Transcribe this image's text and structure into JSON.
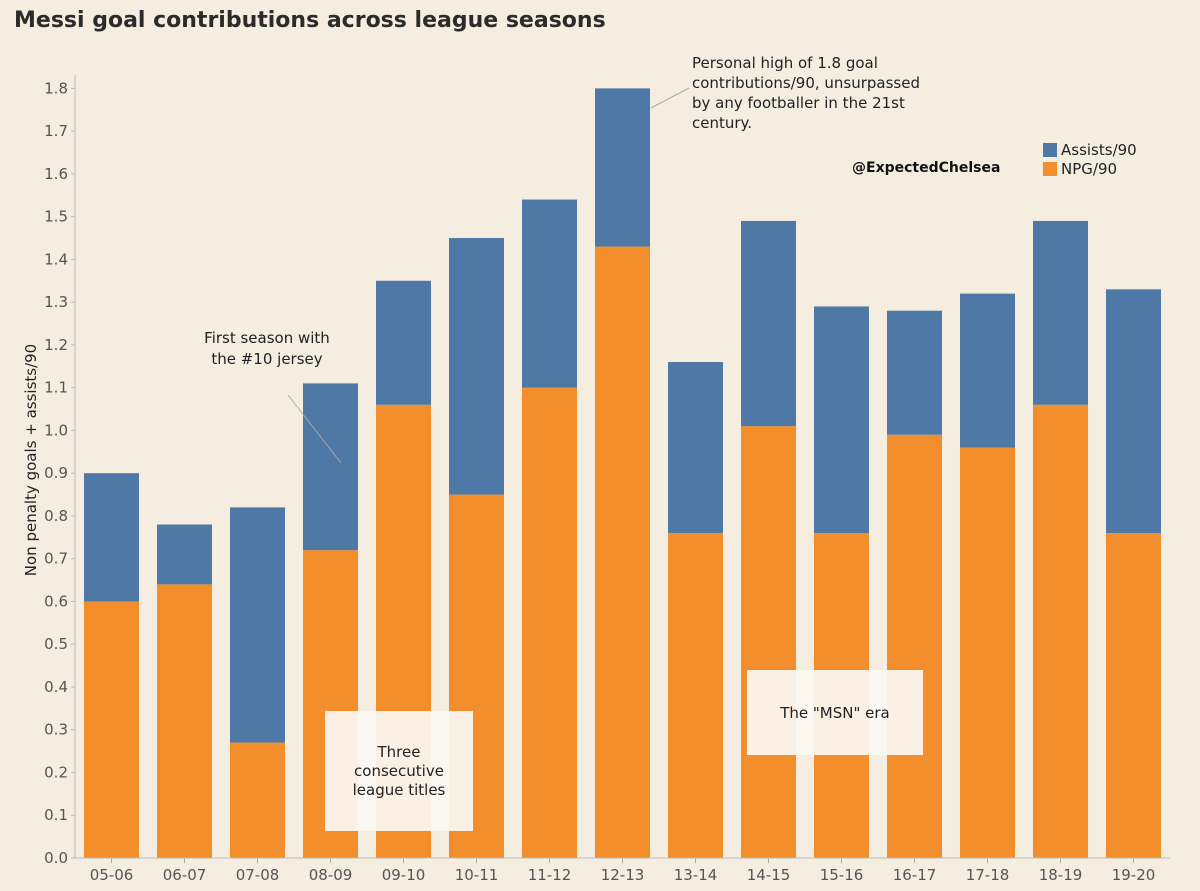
{
  "chart_data": {
    "type": "bar",
    "stacked": true,
    "title": "Messi goal contributions across league seasons",
    "ylabel": "Non penalty goals + assists/90",
    "xlabel": "",
    "ylim": [
      0,
      1.85
    ],
    "yticks": [
      "0.0",
      "0.1",
      "0.2",
      "0.3",
      "0.4",
      "0.5",
      "0.6",
      "0.7",
      "0.8",
      "0.9",
      "1.0",
      "1.1",
      "1.2",
      "1.3",
      "1.4",
      "1.5",
      "1.6",
      "1.7",
      "1.8"
    ],
    "categories": [
      "05-06",
      "06-07",
      "07-08",
      "08-09",
      "09-10",
      "10-11",
      "11-12",
      "12-13",
      "13-14",
      "14-15",
      "15-16",
      "16-17",
      "17-18",
      "18-19",
      "19-20"
    ],
    "series": [
      {
        "name": "NPG/90",
        "color": "#f28e2b",
        "values": [
          0.6,
          0.64,
          0.27,
          0.72,
          1.06,
          0.85,
          1.1,
          1.43,
          0.76,
          1.01,
          0.76,
          0.99,
          0.96,
          1.06,
          0.76
        ]
      },
      {
        "name": "Assists/90",
        "color": "#4e79a7",
        "values": [
          0.3,
          0.14,
          0.55,
          0.39,
          0.29,
          0.6,
          0.44,
          0.37,
          0.4,
          0.48,
          0.53,
          0.29,
          0.36,
          0.43,
          0.57
        ]
      }
    ],
    "legend": {
      "placement": "top-right",
      "order": [
        "Assists/90",
        "NPG/90"
      ]
    },
    "grid": false,
    "annotations": {
      "jersey": [
        "First season with",
        "the #10 jersey"
      ],
      "high": [
        "Personal high of 1.8 goal",
        "contributions/90, unsurpassed",
        "by any footballer in the 21st",
        "century."
      ],
      "titles_box": [
        "Three",
        "consecutive",
        "league titles"
      ],
      "msn_box": [
        "The \"MSN\" era"
      ]
    },
    "handle": "@ExpectedChelsea"
  }
}
